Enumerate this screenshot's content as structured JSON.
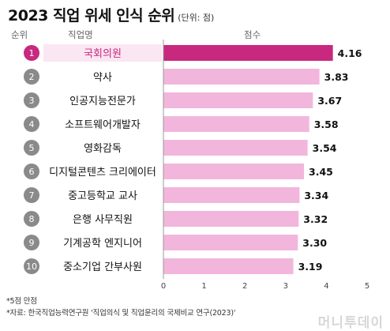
{
  "header": {
    "title": "2023 직업 위세 인식 순위",
    "unit": "(단위: 점)",
    "col_rank": "순위",
    "col_job": "직업명",
    "col_score": "점수"
  },
  "colors": {
    "bar": "#f2b6dc",
    "bar_highlight": "#c8287e",
    "circle": "#8a8a8a",
    "row_highlight_bg": "#fbe6f3",
    "row_highlight_text": "#c8287e"
  },
  "chart_data": {
    "type": "bar",
    "orientation": "horizontal",
    "ranks": [
      "1",
      "2",
      "3",
      "4",
      "5",
      "6",
      "7",
      "8",
      "9",
      "10"
    ],
    "categories": [
      "국회의원",
      "약사",
      "인공지능전문가",
      "소프트웨어개발자",
      "영화감독",
      "디지털콘텐츠 크리에이터",
      "중고등학교 교사",
      "은행 사무직원",
      "기계공학 엔지니어",
      "중소기업 간부사원"
    ],
    "values": [
      4.16,
      3.83,
      3.67,
      3.58,
      3.54,
      3.45,
      3.34,
      3.32,
      3.3,
      3.19
    ],
    "value_labels": [
      "4.16",
      "3.83",
      "3.67",
      "3.58",
      "3.54",
      "3.45",
      "3.34",
      "3.32",
      "3.30",
      "3.19"
    ],
    "highlight_index": 0,
    "xlim": [
      0,
      5
    ],
    "xticks": [
      "0",
      "1",
      "2",
      "3",
      "4",
      "5"
    ],
    "grid": false
  },
  "footer": {
    "note": "*5점 만점",
    "source": "*자료: 한국직업능력연구원 '직업의식 및 직업윤리의 국제비교 연구(2023)'"
  },
  "watermark": "머니투데이"
}
